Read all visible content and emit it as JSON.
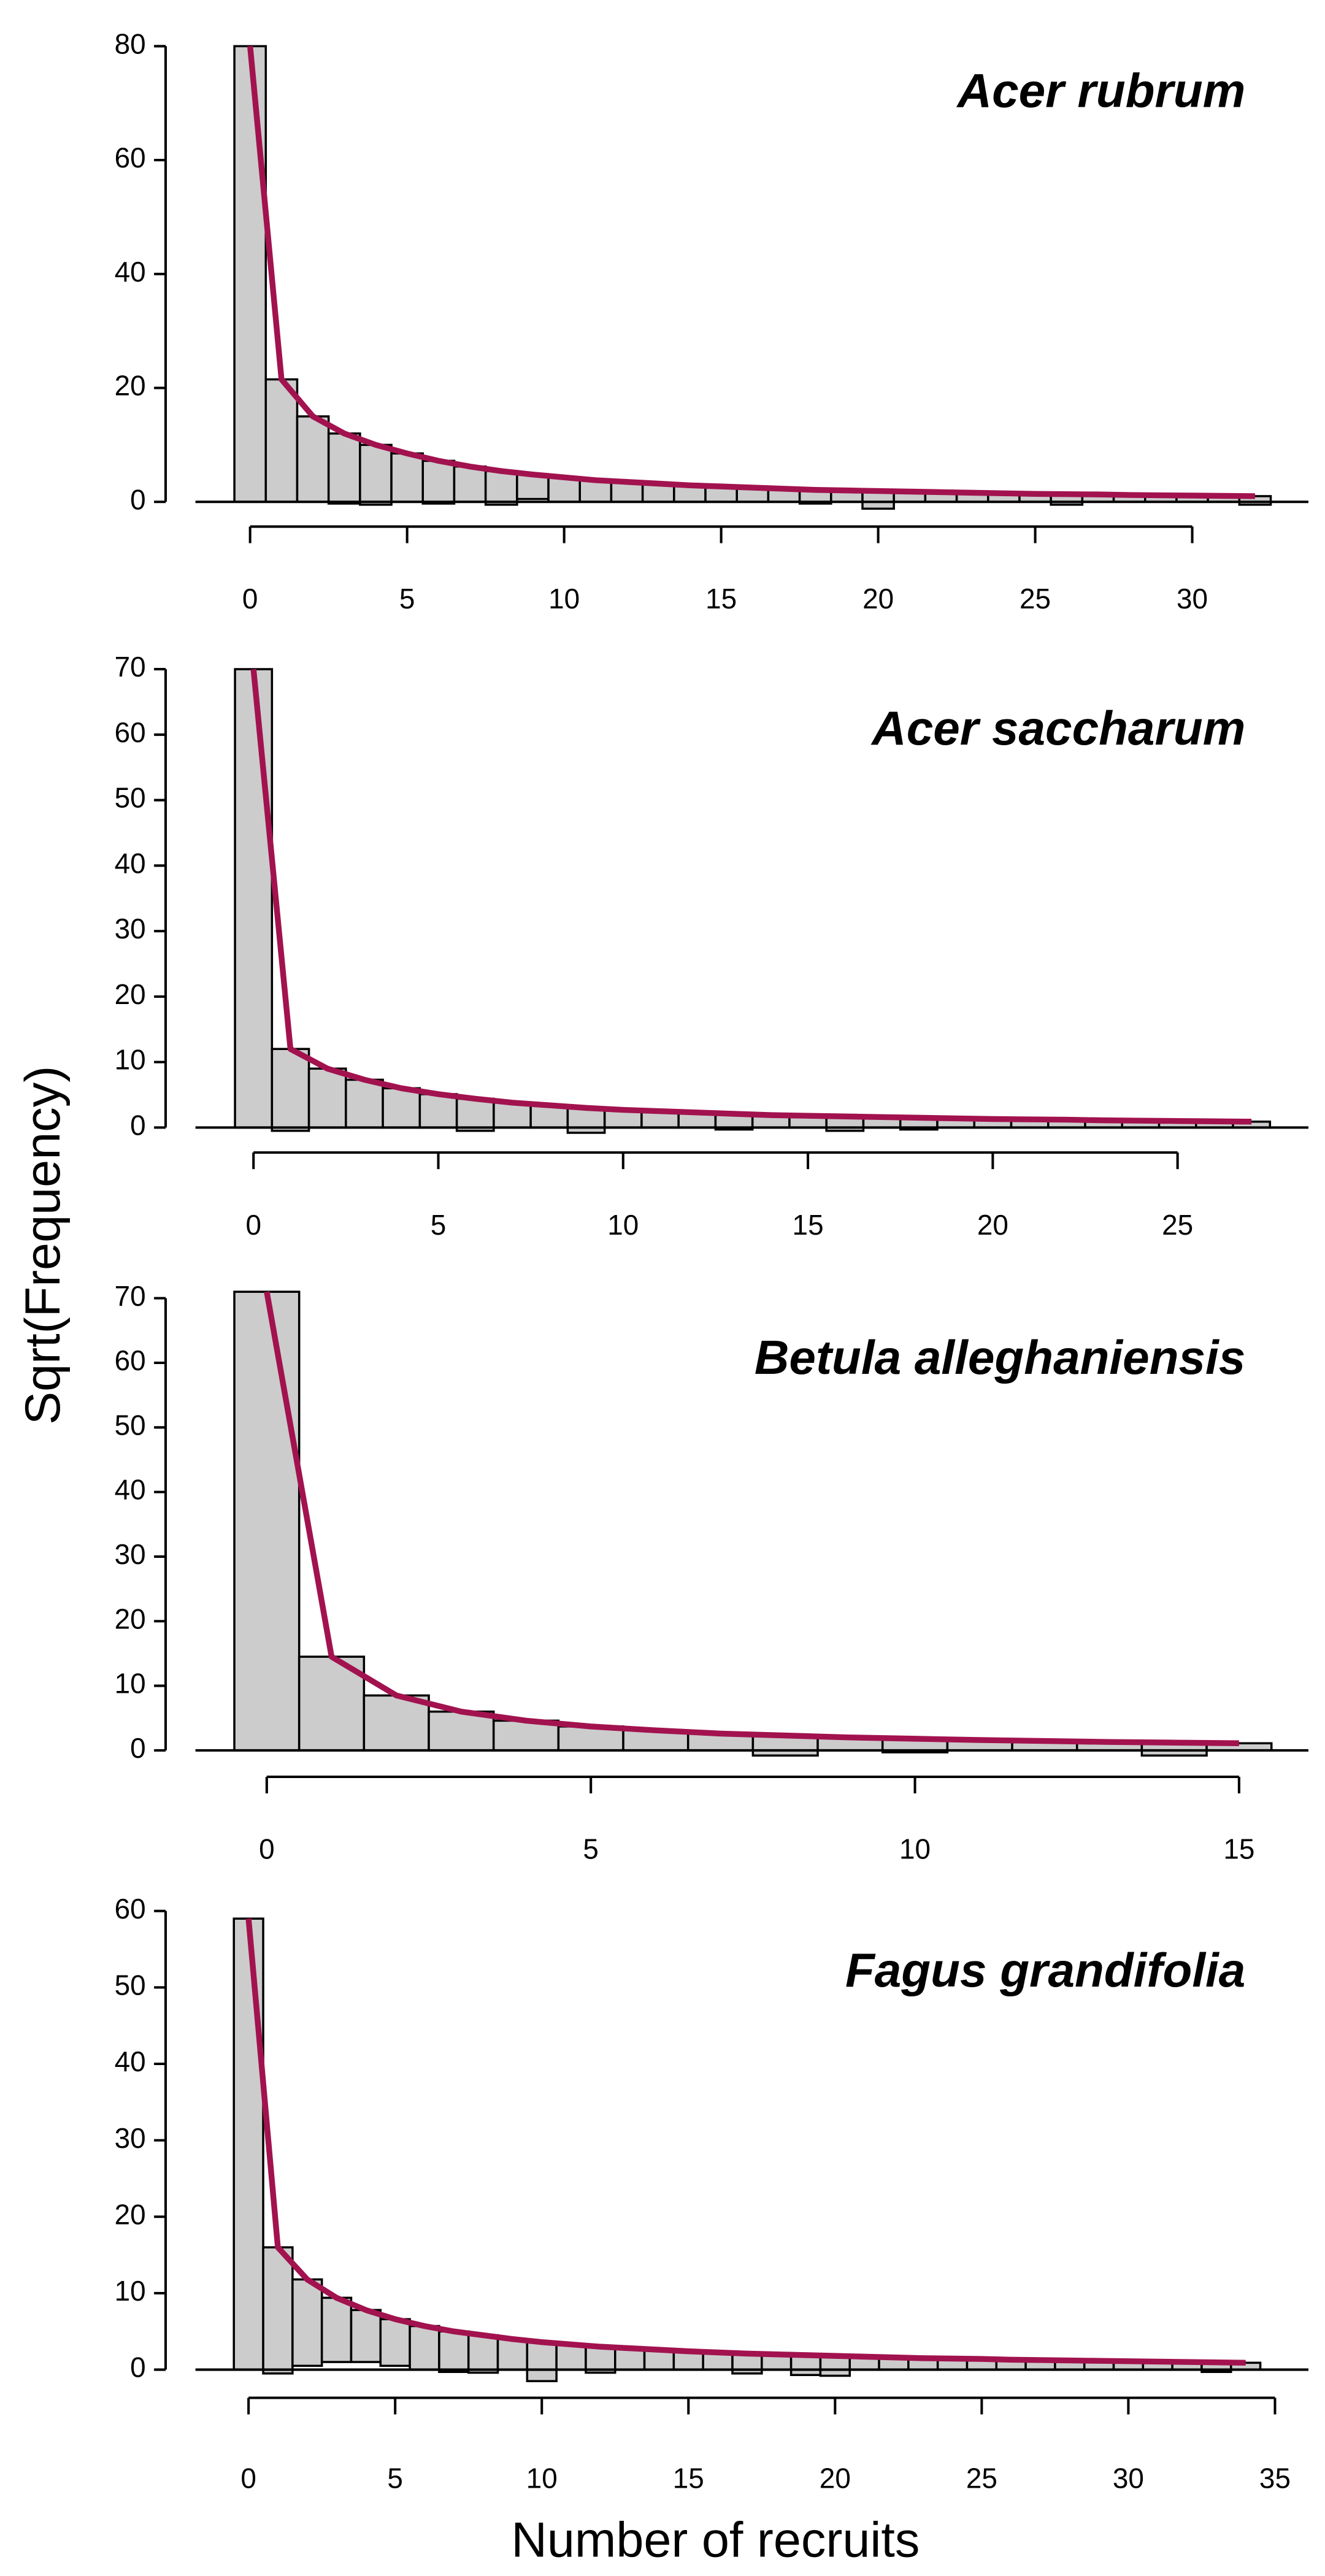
{
  "y_label": "Sqrt(Frequency)",
  "x_label": "Number of recruits",
  "chart_data": [
    {
      "type": "rootogram",
      "title": "Acer rubrum",
      "color": "#a2124e",
      "bar_color": "#cccccc",
      "x": [
        0,
        1,
        2,
        3,
        4,
        5,
        6,
        7,
        8,
        9,
        10,
        11,
        12,
        13,
        14,
        15,
        16,
        17,
        18,
        19,
        20,
        21,
        22,
        23,
        24,
        25,
        26,
        27,
        28,
        29,
        30,
        31,
        32
      ],
      "values": [
        80,
        21.5,
        15,
        12.3,
        10.5,
        8.5,
        7.5,
        6.2,
        5.9,
        4.3,
        4.3,
        3.8,
        3.5,
        3.2,
        2.9,
        2.7,
        2.5,
        2.3,
        2.4,
        2.0,
        3.1,
        1.8,
        1.7,
        1.6,
        1.5,
        1.4,
        1.85,
        1.3,
        1.2,
        1.15,
        1.1,
        1.05,
        1.5
      ],
      "fitted": [
        80,
        21.5,
        15,
        12,
        10,
        8.5,
        7.2,
        6.2,
        5.4,
        4.8,
        4.3,
        3.8,
        3.5,
        3.2,
        2.9,
        2.7,
        2.5,
        2.3,
        2.1,
        2.0,
        1.9,
        1.8,
        1.7,
        1.6,
        1.5,
        1.4,
        1.35,
        1.3,
        1.2,
        1.15,
        1.1,
        1.05,
        1.0
      ],
      "xlim": [
        -1.74,
        33.7
      ],
      "ylim": [
        -2.6,
        85.2
      ],
      "xticks": [
        0,
        5,
        10,
        15,
        20,
        25,
        30
      ],
      "yticks": [
        0,
        20,
        40,
        60,
        80
      ]
    },
    {
      "type": "rootogram",
      "title": "Acer saccharum",
      "color": "#a2124e",
      "bar_color": "#cccccc",
      "x": [
        0,
        1,
        2,
        3,
        4,
        5,
        6,
        7,
        8,
        9,
        10,
        11,
        12,
        13,
        14,
        15,
        16,
        17,
        18,
        19,
        20,
        21,
        22,
        23,
        24,
        25,
        26,
        27
      ],
      "values": [
        70,
        12.5,
        9,
        7.3,
        6,
        5.1,
        4.9,
        3.8,
        3.4,
        3.8,
        2.7,
        2.5,
        2.3,
        2.4,
        1.9,
        1.8,
        2.2,
        1.6,
        1.8,
        1.4,
        1.3,
        1.25,
        1.2,
        1.1,
        1.05,
        1.0,
        0.95,
        0.9
      ],
      "fitted": [
        70,
        12,
        9,
        7.3,
        6,
        5.1,
        4.4,
        3.8,
        3.4,
        3.0,
        2.7,
        2.5,
        2.3,
        2.1,
        1.9,
        1.8,
        1.7,
        1.6,
        1.5,
        1.4,
        1.3,
        1.25,
        1.2,
        1.1,
        1.05,
        1.0,
        0.95,
        0.9
      ],
      "xlim": [
        -1.57,
        28.54
      ],
      "ylim": [
        -2.3,
        72.3
      ],
      "xticks": [
        0,
        5,
        10,
        15,
        20,
        25
      ],
      "yticks": [
        0,
        10,
        20,
        30,
        40,
        50,
        60,
        70
      ]
    },
    {
      "type": "rootogram",
      "title": "Betula alleghaniensis",
      "color": "#a2124e",
      "bar_color": "#cccccc",
      "x": [
        0,
        1,
        2,
        3,
        4,
        5,
        6,
        7,
        8,
        9,
        10,
        11,
        12,
        13,
        14,
        15
      ],
      "values": [
        71,
        14.5,
        8.5,
        6,
        4.6,
        3.7,
        3.1,
        2.6,
        3.1,
        2.0,
        2.1,
        1.6,
        1.45,
        1.3,
        2.0,
        1.1
      ],
      "fitted": [
        71,
        14.5,
        8.5,
        6,
        4.6,
        3.7,
        3.1,
        2.6,
        2.3,
        2.0,
        1.8,
        1.6,
        1.45,
        1.3,
        1.2,
        1.1
      ],
      "xlim": [
        -1.1,
        16.07
      ],
      "ylim": [
        -2.56,
        72.3
      ],
      "xticks": [
        0,
        5,
        10,
        15
      ],
      "yticks": [
        0,
        10,
        20,
        30,
        40,
        50,
        60,
        70
      ]
    },
    {
      "type": "rootogram",
      "title": "Fagus grandifolia",
      "color": "#a2124e",
      "bar_color": "#cccccc",
      "x": [
        0,
        1,
        2,
        3,
        4,
        5,
        6,
        7,
        8,
        9,
        10,
        11,
        12,
        13,
        14,
        15,
        16,
        17,
        18,
        19,
        20,
        21,
        22,
        23,
        24,
        25,
        26,
        27,
        28,
        29,
        30,
        31,
        32,
        33,
        34
      ],
      "values": [
        59,
        16.5,
        11.3,
        8.4,
        6.8,
        6.1,
        5.7,
        5.3,
        4.9,
        4.0,
        5.1,
        3.3,
        3.4,
        2.8,
        2.6,
        2.4,
        2.25,
        2.6,
        2.0,
        2.6,
        2.6,
        1.7,
        1.6,
        1.5,
        1.45,
        1.4,
        1.3,
        1.25,
        1.2,
        1.15,
        1.1,
        1.05,
        1.0,
        1.25,
        0.9
      ],
      "fitted": [
        59,
        16,
        11.8,
        9.4,
        7.8,
        6.6,
        5.7,
        5.0,
        4.5,
        4.0,
        3.6,
        3.3,
        3.0,
        2.8,
        2.6,
        2.4,
        2.25,
        2.1,
        2.0,
        1.9,
        1.8,
        1.7,
        1.6,
        1.5,
        1.45,
        1.4,
        1.3,
        1.25,
        1.2,
        1.15,
        1.1,
        1.05,
        1.0,
        0.95,
        0.9
      ],
      "xlim": [
        -1.81,
        36.14
      ],
      "ylim": [
        -2.17,
        61.95
      ],
      "xticks": [
        0,
        5,
        10,
        15,
        20,
        25,
        30,
        35
      ],
      "yticks": [
        0,
        10,
        20,
        30,
        40,
        50,
        60
      ]
    }
  ]
}
